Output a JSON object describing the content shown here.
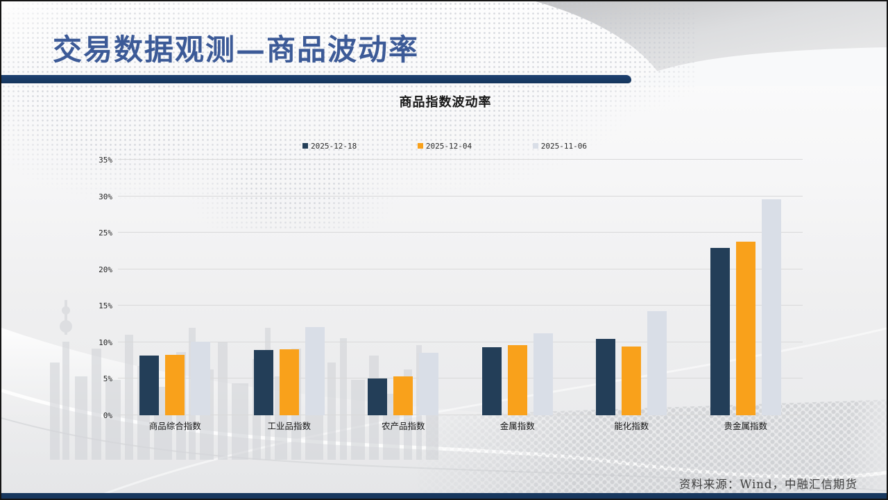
{
  "slide": {
    "title": "交易数据观测—商品波动率"
  },
  "chart": {
    "title": "商品指数波动率"
  },
  "footer": {
    "source": "资料来源：Wind，中融汇信期货"
  },
  "colors": {
    "series_navy": "#233e58",
    "series_orange": "#f9a11b",
    "series_lightgray": "#d9dee7",
    "divider_navy": "#17375e",
    "title_blue": "#3c5a97",
    "gridline": "#d9d9d9"
  },
  "chart_data": {
    "type": "bar",
    "title": "商品指数波动率",
    "categories": [
      "商品综合指数",
      "工业品指数",
      "农产品指数",
      "金属指数",
      "能化指数",
      "贵金属指数"
    ],
    "series": [
      {
        "name": "2025-12-18",
        "color": "#233e58",
        "values": [
          8.2,
          8.9,
          5.0,
          9.3,
          10.5,
          22.9
        ]
      },
      {
        "name": "2025-12-04",
        "color": "#f9a11b",
        "values": [
          8.3,
          9.0,
          5.3,
          9.6,
          9.4,
          23.8
        ]
      },
      {
        "name": "2025-11-06",
        "color": "#d9dee7",
        "values": [
          10.1,
          12.1,
          8.6,
          11.2,
          14.3,
          29.6
        ]
      }
    ],
    "xlabel": "",
    "ylabel": "",
    "ylim": [
      0,
      35
    ],
    "y_ticks": [
      "0%",
      "5%",
      "10%",
      "15%",
      "20%",
      "25%",
      "30%",
      "35%"
    ],
    "grid": true,
    "legend_position": "top"
  }
}
